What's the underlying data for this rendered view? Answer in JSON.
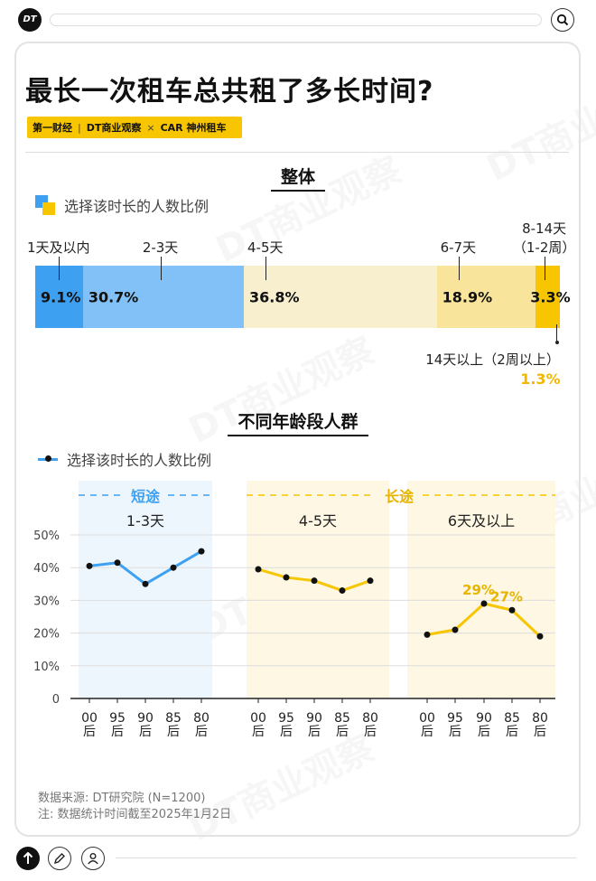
{
  "header": {
    "logo": "DT"
  },
  "title": "最长一次租车总共租了多长时间?",
  "brands": [
    "第一财经",
    "DT商业观察",
    "×",
    "CAR 神州租车"
  ],
  "watermark": "DT商业观察",
  "colors": {
    "blue_dark": "#3ea0f0",
    "blue_light": "#82c1f7",
    "cream": "#f8efcf",
    "yellow_light": "#f8e59b",
    "yellow": "#f7c600",
    "short_bg": "#eef6fd",
    "long_bg": "#fdf7e3"
  },
  "chart_data": [
    {
      "type": "bar",
      "stacked": true,
      "title": "整体",
      "legend": "选择该时长的人数比例",
      "categories": [
        "1天及以内",
        "2-3天",
        "4-5天",
        "6-7天",
        "8-14天（1-2周）",
        "14天以上（2周以上）"
      ],
      "values": [
        9.1,
        30.7,
        36.8,
        18.9,
        3.3,
        1.3
      ],
      "value_labels": [
        "9.1%",
        "30.7%",
        "36.8%",
        "18.9%",
        "3.3%",
        "1.3%"
      ],
      "category_labels": [
        [
          "1天及以内"
        ],
        [
          "2-3天"
        ],
        [
          "4-5天"
        ],
        [
          "6-7天"
        ],
        [
          "8-14天",
          "（1-2周）"
        ],
        [
          "14天以上（2周以上）"
        ]
      ]
    },
    {
      "type": "line",
      "title": "不同年龄段人群",
      "legend": "选择该时长的人数比例",
      "ylim": [
        0,
        50
      ],
      "yticks": [
        "0",
        "10%",
        "20%",
        "30%",
        "40%",
        "50%"
      ],
      "x": [
        "00后",
        "95后",
        "90后",
        "85后",
        "80后"
      ],
      "x_labels": [
        [
          "00",
          "后"
        ],
        [
          "95",
          "后"
        ],
        [
          "90",
          "后"
        ],
        [
          "85",
          "后"
        ],
        [
          "80",
          "后"
        ]
      ],
      "groups": [
        {
          "label": "短途",
          "members": [
            "1-3天"
          ]
        },
        {
          "label": "长途",
          "members": [
            "4-5天",
            "6天及以上"
          ]
        }
      ],
      "series": [
        {
          "name": "1-3天",
          "values": [
            40.5,
            41.5,
            35,
            40,
            45
          ]
        },
        {
          "name": "4-5天",
          "values": [
            39.5,
            37,
            36,
            33,
            36
          ]
        },
        {
          "name": "6天及以上",
          "values": [
            19.5,
            21,
            29,
            27,
            19
          ]
        }
      ],
      "annotations": [
        {
          "series": "6天及以上",
          "x": "90后",
          "text": "29%"
        },
        {
          "series": "6天及以上",
          "x": "85后",
          "text": "27%"
        }
      ]
    }
  ],
  "source": "数据来源: DT研究院 (N=1200)",
  "note": "注: 数据统计时间截至2025年1月2日"
}
